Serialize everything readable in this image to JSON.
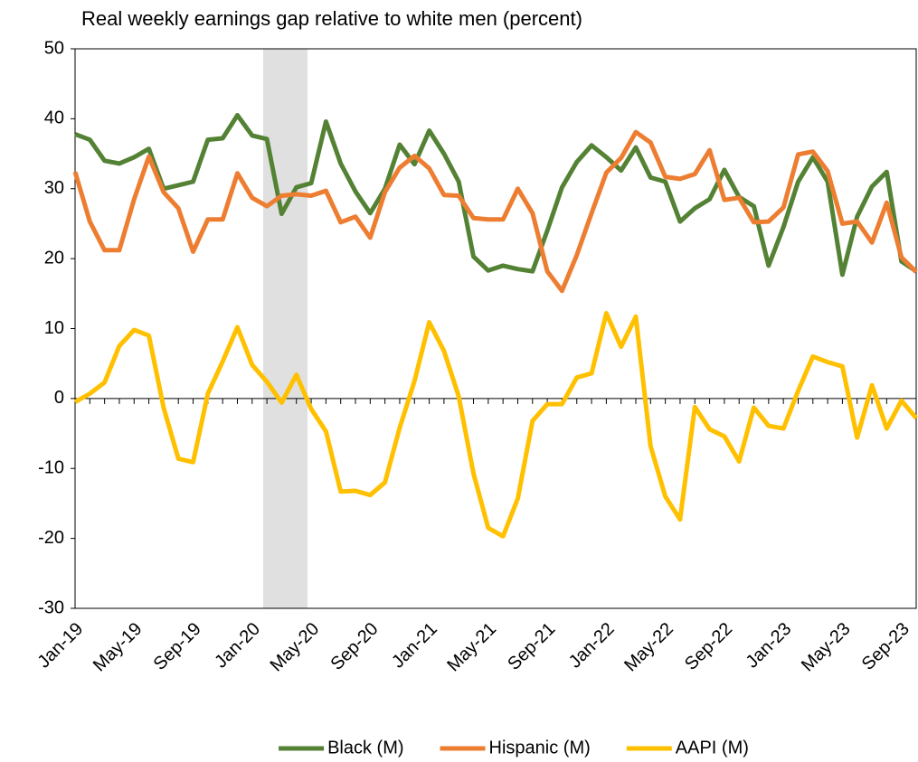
{
  "chart_data": {
    "type": "line",
    "title": "Real weekly earnings gap relative to white men (percent)",
    "categories": [
      "Jan-19",
      null,
      null,
      null,
      "May-19",
      null,
      null,
      null,
      "Sep-19",
      null,
      null,
      null,
      "Jan-20",
      null,
      null,
      null,
      "May-20",
      null,
      null,
      null,
      "Sep-20",
      null,
      null,
      null,
      "Jan-21",
      null,
      null,
      null,
      "May-21",
      null,
      null,
      null,
      "Sep-21",
      null,
      null,
      null,
      "Jan-22",
      null,
      null,
      null,
      "May-22",
      null,
      null,
      null,
      "Sep-22",
      null,
      null,
      null,
      "Jan-23",
      null,
      null,
      null,
      "May-23",
      null,
      null,
      null,
      "Sep-23",
      null
    ],
    "series": [
      {
        "name": "Black (M)",
        "color": "#548235",
        "values": [
          37.8,
          37,
          34,
          33.6,
          34.5,
          35.7,
          30,
          30.5,
          31,
          37,
          37.2,
          40.5,
          37.6,
          37.1,
          26.4,
          30.2,
          30.8,
          39.6,
          33.6,
          29.6,
          26.5,
          30,
          36.3,
          33.5,
          38.3,
          35,
          31,
          20.3,
          18.3,
          19,
          18.5,
          18.2,
          24,
          30.2,
          33.8,
          36.2,
          34.5,
          32.6,
          35.9,
          31.6,
          31,
          25.3,
          27.2,
          28.5,
          32.7,
          28.8,
          27.5,
          19,
          24.5,
          31,
          34.5,
          31,
          17.7,
          26,
          30.3,
          32.4,
          19.6,
          18.2
        ]
      },
      {
        "name": "Hispanic (M)",
        "color": "#ed7d31",
        "values": [
          32.4,
          25.3,
          21.2,
          21.2,
          28.5,
          34.6,
          29.5,
          27.2,
          21,
          25.6,
          25.6,
          32.2,
          28.7,
          27.5,
          29,
          29.2,
          29,
          29.7,
          25.2,
          26,
          23,
          29.5,
          33,
          34.7,
          32.9,
          29.1,
          29,
          25.8,
          25.6,
          25.6,
          30,
          26.5,
          18.2,
          15.4,
          20.5,
          26.5,
          32.3,
          34.4,
          38.1,
          36.6,
          31.7,
          31.4,
          32.1,
          35.5,
          28.4,
          28.7,
          25.2,
          25.3,
          27.3,
          34.9,
          35.3,
          32.5,
          25,
          25.3,
          22.3,
          28,
          20.2,
          18.1
        ]
      },
      {
        "name": "AAPI (M)",
        "color": "#ffc000",
        "values": [
          -0.5,
          0.7,
          2.3,
          7.5,
          9.8,
          9,
          -1.3,
          -8.6,
          -9.1,
          0.7,
          5.3,
          10.2,
          4.8,
          2.4,
          -0.6,
          3.4,
          -1.5,
          -4.7,
          -13.3,
          -13.2,
          -13.8,
          -12,
          -4.2,
          2.5,
          10.9,
          6.8,
          0.3,
          -10.7,
          -18.5,
          -19.7,
          -14.3,
          -3.2,
          -0.8,
          -0.8,
          3,
          3.6,
          12.2,
          7.4,
          11.7,
          -6.8,
          -14,
          -17.3,
          -1.2,
          -4.4,
          -5.4,
          -9,
          -1.3,
          -3.9,
          -4.3,
          1.1,
          6,
          5.2,
          4.6,
          -5.6,
          1.9,
          -4.3,
          -0.3,
          -2.8
        ]
      }
    ],
    "ylim": [
      -30,
      50
    ],
    "yticks": [
      -30,
      -20,
      -10,
      0,
      10,
      20,
      30,
      40,
      50
    ],
    "grid": false,
    "legend": "bottom"
  }
}
